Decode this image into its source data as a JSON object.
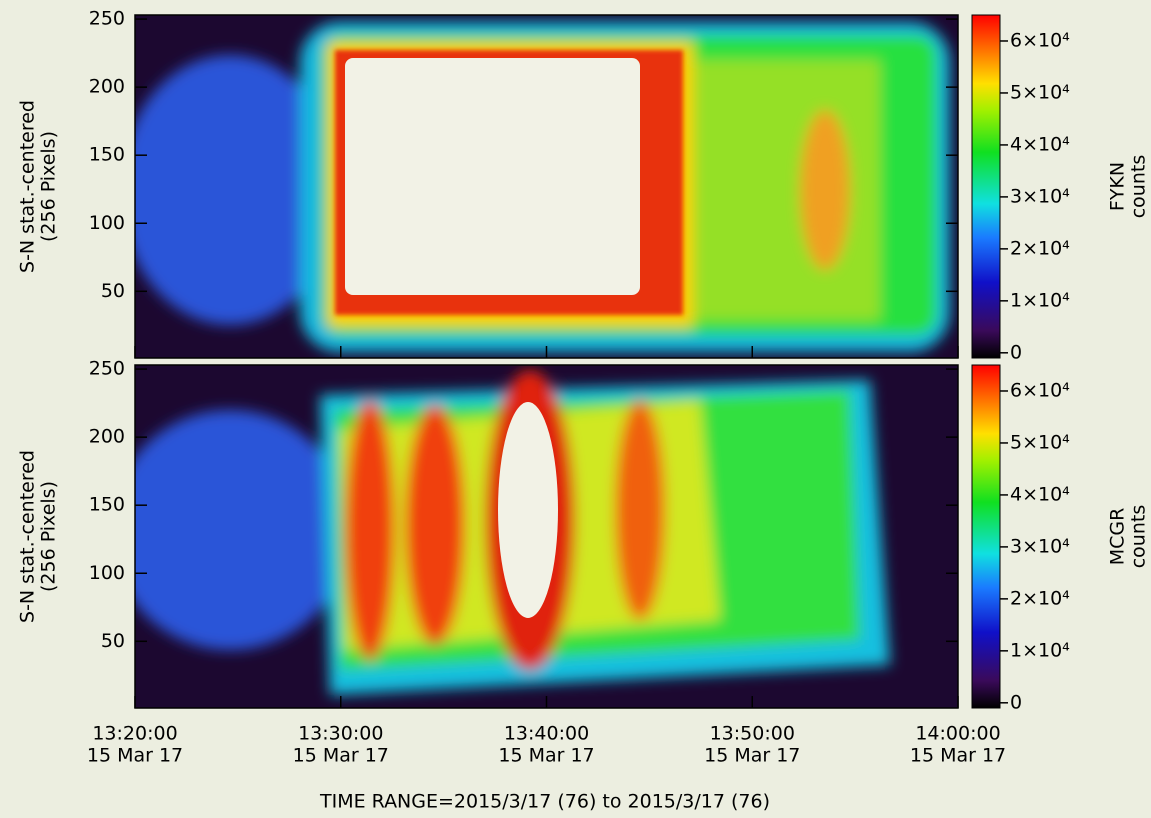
{
  "chart_data": [
    {
      "type": "heatmap",
      "ylabel": [
        "S-N stat.-centered",
        "(256 Pixels)"
      ],
      "ylim": [
        1,
        253
      ],
      "yticks": [
        50,
        100,
        150,
        200,
        250
      ],
      "xlim": [
        "13:20:00",
        "14:00:00"
      ],
      "colorbar": {
        "label": [
          "FYKN",
          "counts"
        ],
        "lim": [
          -1000,
          65000
        ],
        "ticks": [
          0,
          {
            "value": 10000,
            "label": "1×10⁴"
          },
          {
            "value": 20000,
            "label": "2×10⁴"
          },
          {
            "value": 30000,
            "label": "3×10⁴"
          },
          {
            "value": 40000,
            "label": "4×10⁴"
          },
          {
            "value": 50000,
            "label": "5×10⁴"
          },
          {
            "value": 60000,
            "label": "6×10⁴"
          }
        ]
      }
    },
    {
      "type": "heatmap",
      "ylabel": [
        "S-N stat.-centered",
        "(256 Pixels)"
      ],
      "ylim": [
        1,
        253
      ],
      "yticks": [
        50,
        100,
        150,
        200,
        250
      ],
      "xlim": [
        "13:20:00",
        "14:00:00"
      ],
      "xticks": [
        "13:20:00",
        "13:30:00",
        "13:40:00",
        "13:50:00",
        "14:00:00"
      ],
      "xtick_dates": [
        "15 Mar 17",
        "15 Mar 17",
        "15 Mar 17",
        "15 Mar 17",
        "15 Mar 17"
      ],
      "xlabel": "TIME RANGE=2015/3/17 (76) to 2015/3/17 (76)",
      "colorbar": {
        "label": [
          "MCGR",
          "counts"
        ],
        "lim": [
          -1000,
          65000
        ],
        "ticks": [
          0,
          {
            "value": 10000,
            "label": "1×10⁴"
          },
          {
            "value": 20000,
            "label": "2×10⁴"
          },
          {
            "value": 30000,
            "label": "3×10⁴"
          },
          {
            "value": 40000,
            "label": "4×10⁴"
          },
          {
            "value": 50000,
            "label": "5×10⁴"
          },
          {
            "value": 60000,
            "label": "6×10⁴"
          }
        ]
      }
    }
  ]
}
